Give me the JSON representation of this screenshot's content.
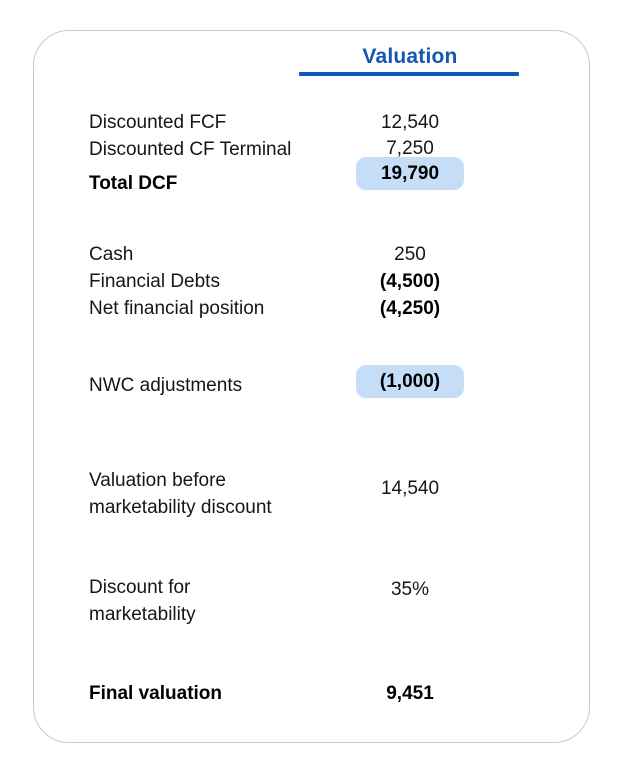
{
  "table": {
    "header": {
      "title": "Valuation"
    },
    "rows": {
      "discounted_fcf": {
        "label": "Discounted FCF",
        "value": "12,540"
      },
      "discounted_cf_terminal": {
        "label": "Discounted CF Terminal",
        "value": "7,250"
      },
      "total_dcf": {
        "label": "Total DCF",
        "value": "19,790",
        "highlighted": true
      },
      "cash": {
        "label": "Cash",
        "value": "250"
      },
      "financial_debts": {
        "label": "Financial Debts",
        "value": "(4,500)"
      },
      "net_financial_position": {
        "label": "Net financial position",
        "value": "(4,250)"
      },
      "nwc_adjustments": {
        "label": "NWC adjustments",
        "value": "(1,000)",
        "highlighted": true
      },
      "valuation_before_discount": {
        "label": "Valuation before marketability discount",
        "value": "14,540"
      },
      "discount_for_marketability": {
        "label": "Discount for marketability",
        "value": "35%"
      },
      "final_valuation": {
        "label": "Final valuation",
        "value": "9,451"
      }
    }
  },
  "colors": {
    "accent_blue": "#1356b4",
    "highlight_blue": "#c6ddf8",
    "card_border_gray": "#cdc8c4",
    "text_black": "#161616"
  }
}
